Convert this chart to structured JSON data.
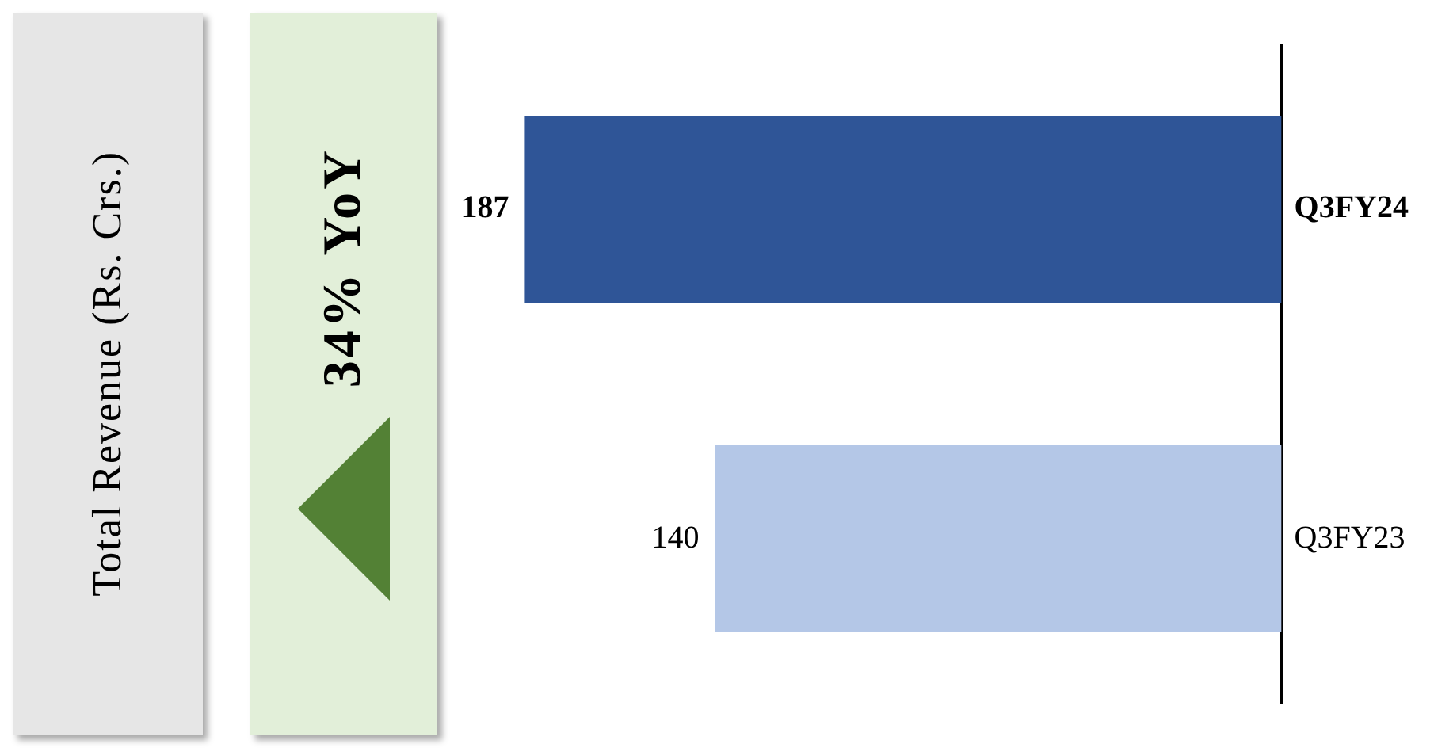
{
  "chart_data": {
    "type": "bar",
    "orientation": "horizontal",
    "title": "Total Revenue (Rs. Crs.)",
    "annotations": [
      "34% YoY"
    ],
    "categories": [
      "Q3FY24",
      "Q3FY23"
    ],
    "values": [
      187,
      140
    ],
    "colors": [
      "#2f5597",
      "#b4c7e7"
    ],
    "data_labels": true,
    "grid": false,
    "legend": false
  }
}
